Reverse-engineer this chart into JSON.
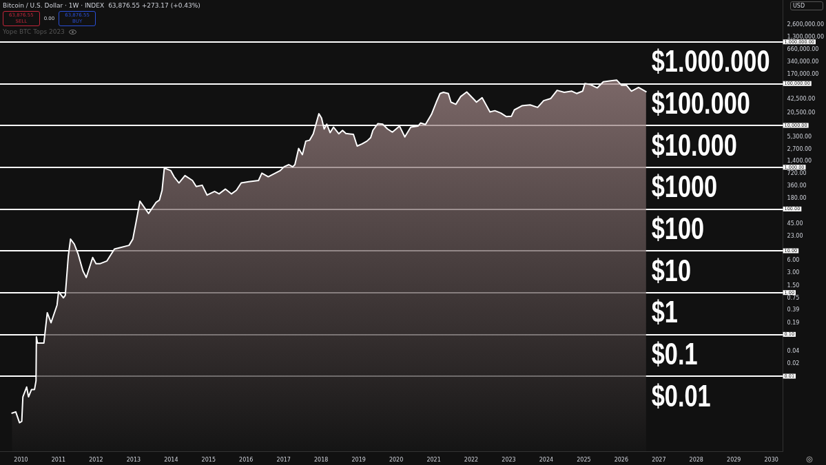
{
  "chart_data": {
    "type": "area",
    "title": "Bitcoin / U.S. Dollar · 1W · INDEX",
    "subtitle": "63,876.55 +273.17 (+0.43%)",
    "ylabel": "USD",
    "log": "y",
    "grid": false,
    "marker": "none",
    "line_style": "solid",
    "xlim": [
      2009.44,
      2030.31
    ],
    "xticks": [
      2010,
      2011,
      2012,
      2013,
      2014,
      2015,
      2016,
      2017,
      2018,
      2019,
      2020,
      2021,
      2022,
      2023,
      2024,
      2025,
      2026,
      2027,
      2028,
      2029,
      2030
    ],
    "ylim": [
      0.00016,
      10000000
    ],
    "yticks": [
      {
        "value": 2600000,
        "label": "2,600,000.00"
      },
      {
        "value": 1300000,
        "label": "1,300,000.00"
      },
      {
        "value": 660000,
        "label": "660,000.00"
      },
      {
        "value": 340000,
        "label": "340,000.00"
      },
      {
        "value": 170000,
        "label": "170,000.00"
      },
      {
        "value": 42500,
        "label": "42,500.00"
      },
      {
        "value": 20500,
        "label": "20,500.00"
      },
      {
        "value": 5300,
        "label": "5,300.00"
      },
      {
        "value": 2700,
        "label": "2,700.00"
      },
      {
        "value": 1400,
        "label": "1,400.00"
      },
      {
        "value": 720,
        "label": "720.00"
      },
      {
        "value": 360,
        "label": "360.00"
      },
      {
        "value": 180,
        "label": "180.00"
      },
      {
        "value": 45,
        "label": "45.00"
      },
      {
        "value": 23,
        "label": "23.00"
      },
      {
        "value": 6,
        "label": "6.00"
      },
      {
        "value": 3,
        "label": "3.00"
      },
      {
        "value": 1.5,
        "label": "1.50"
      },
      {
        "value": 0.75,
        "label": "0.75"
      },
      {
        "value": 0.39,
        "label": "0.39"
      },
      {
        "value": 0.19,
        "label": "0.19"
      },
      {
        "value": 0.04,
        "label": "0.04"
      },
      {
        "value": 0.02,
        "label": "0.02"
      }
    ],
    "series": [
      {
        "color": "#ffffff",
        "x": [
          2009.76,
          2009.86,
          2009.96,
          2010.02,
          2010.05,
          2010.15,
          2010.2,
          2010.28,
          2010.36,
          2010.4,
          2010.41,
          2010.44,
          2010.61,
          2010.7,
          2010.8,
          2010.96,
          2011.0,
          2011.13,
          2011.18,
          2011.26,
          2011.32,
          2011.42,
          2011.52,
          2011.65,
          2011.74,
          2011.91,
          2012.0,
          2012.1,
          2012.29,
          2012.49,
          2012.62,
          2012.88,
          2012.98,
          2013.08,
          2013.17,
          2013.4,
          2013.6,
          2013.69,
          2013.76,
          2013.82,
          2013.99,
          2014.08,
          2014.21,
          2014.37,
          2014.57,
          2014.67,
          2014.83,
          2014.96,
          2015.16,
          2015.28,
          2015.45,
          2015.61,
          2015.74,
          2015.87,
          2016.07,
          2016.33,
          2016.42,
          2016.59,
          2016.91,
          2017.01,
          2017.14,
          2017.24,
          2017.3,
          2017.4,
          2017.5,
          2017.59,
          2017.69,
          2017.79,
          2017.94,
          2018.01,
          2018.08,
          2018.15,
          2018.24,
          2018.33,
          2018.47,
          2018.57,
          2018.66,
          2018.86,
          2018.96,
          2019.09,
          2019.22,
          2019.32,
          2019.38,
          2019.51,
          2019.64,
          2019.77,
          2019.9,
          2020.09,
          2020.23,
          2020.39,
          2020.58,
          2020.65,
          2020.78,
          2020.94,
          2021.07,
          2021.17,
          2021.26,
          2021.39,
          2021.46,
          2021.59,
          2021.72,
          2021.88,
          2022.05,
          2022.14,
          2022.29,
          2022.5,
          2022.63,
          2022.79,
          2022.94,
          2023.07,
          2023.15,
          2023.35,
          2023.57,
          2023.77,
          2023.93,
          2024.12,
          2024.29,
          2024.48,
          2024.68,
          2024.81,
          2024.97,
          2025.03,
          2025.16,
          2025.36,
          2025.52,
          2025.72,
          2025.88,
          2026.01,
          2026.14,
          2026.27,
          2026.46,
          2026.66
        ],
        "values": [
          0.0013,
          0.0014,
          0.00077,
          0.00083,
          0.0032,
          0.0055,
          0.0032,
          0.0048,
          0.0048,
          0.0077,
          0.087,
          0.062,
          0.062,
          0.33,
          0.19,
          0.5,
          1.05,
          0.75,
          0.86,
          7.4,
          19,
          14.5,
          8.5,
          3.3,
          2.3,
          6.9,
          4.9,
          4.9,
          5.7,
          11,
          11.8,
          13.5,
          19,
          56,
          154,
          78,
          144,
          164,
          280,
          950,
          830,
          590,
          420,
          630,
          480,
          345,
          370,
          215,
          263,
          230,
          300,
          230,
          280,
          420,
          450,
          480,
          720,
          590,
          830,
          1020,
          1150,
          1020,
          1150,
          2800,
          2000,
          4200,
          4400,
          6300,
          19000,
          15000,
          8200,
          10700,
          6700,
          9100,
          6300,
          7600,
          6400,
          6100,
          3200,
          3600,
          4200,
          5100,
          7600,
          11000,
          10700,
          8200,
          6900,
          9600,
          5300,
          9100,
          9600,
          11400,
          10500,
          18300,
          36000,
          58000,
          62000,
          58000,
          36000,
          32000,
          49000,
          63000,
          44000,
          36000,
          46000,
          21000,
          22500,
          19700,
          16200,
          16500,
          23500,
          29500,
          31000,
          27000,
          39000,
          44000,
          69000,
          62000,
          66000,
          58000,
          66000,
          100000,
          96000,
          79000,
          110000,
          117000,
          121000,
          91000,
          91000,
          66000,
          81000,
          64000
        ]
      }
    ],
    "ref_lines": [
      {
        "axis": "y",
        "value": 1000000,
        "label": "1,000,000.00",
        "color": "#ffffff"
      },
      {
        "axis": "y",
        "value": 100000,
        "label": "100,000.00",
        "color": "#ffffff"
      },
      {
        "axis": "y",
        "value": 10000,
        "label": "10,000.00",
        "color": "#ffffff"
      },
      {
        "axis": "y",
        "value": 1000,
        "label": "1,000.00",
        "color": "#ffffff"
      },
      {
        "axis": "y",
        "value": 100,
        "label": "100.00",
        "color": "#ffffff"
      },
      {
        "axis": "y",
        "value": 10,
        "label": "10.00",
        "color": "#ffffff"
      },
      {
        "axis": "y",
        "value": 1,
        "label": "1.00",
        "color": "#ffffff"
      },
      {
        "axis": "y",
        "value": 0.1,
        "label": "0.10",
        "color": "#ffffff"
      },
      {
        "axis": "y",
        "value": 0.01,
        "label": "0.01",
        "color": "#ffffff"
      }
    ],
    "annotations": [
      "63,876.55",
      "SELL",
      "0.00",
      "63,876.55",
      "BUY",
      "Yope BTC Tops 2023",
      {
        "text": "$1.000.000",
        "y": 1000000
      },
      {
        "text": "$100.000",
        "y": 100000
      },
      {
        "text": "$10.000",
        "y": 10000
      },
      {
        "text": "$1000",
        "y": 1000
      },
      {
        "text": "$100",
        "y": 100
      },
      {
        "text": "$10",
        "y": 10
      },
      {
        "text": "$1",
        "y": 1
      },
      {
        "text": "$0.1",
        "y": 0.1
      },
      {
        "text": "$0.01",
        "y": 0.01
      }
    ]
  }
}
